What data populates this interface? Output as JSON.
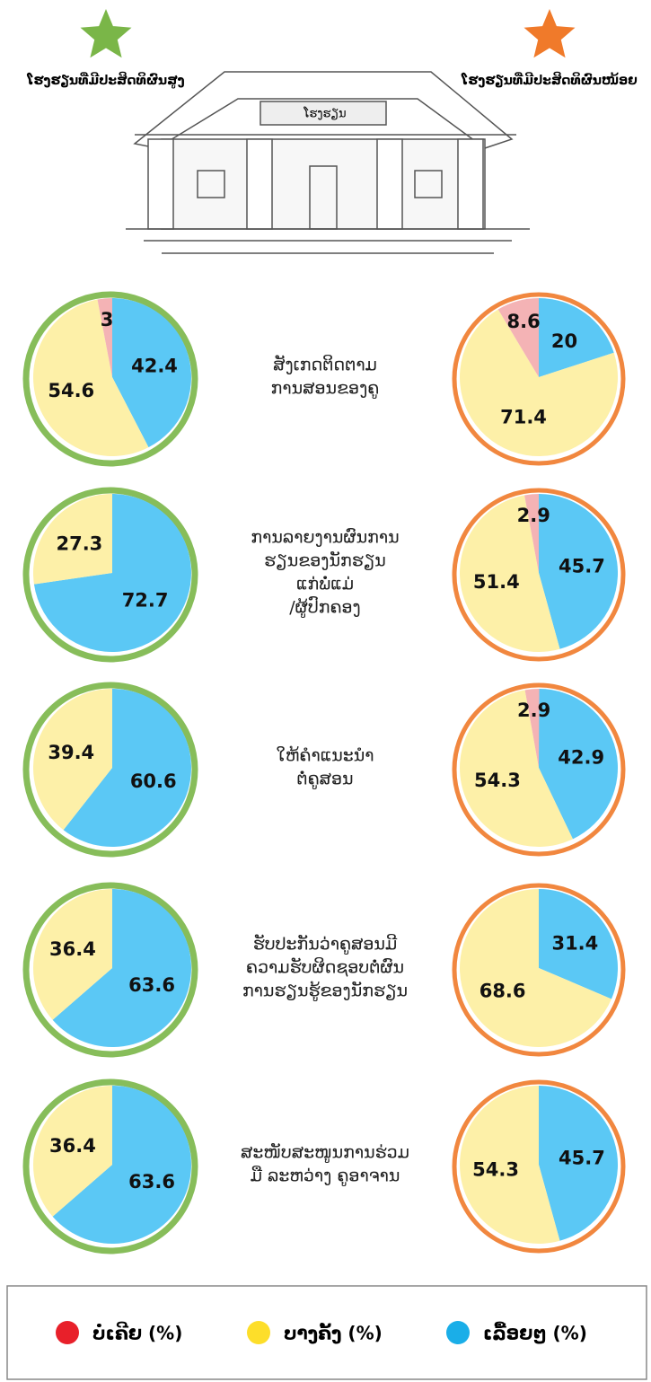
{
  "header": {
    "high": {
      "label": "ໂຮງຮຽນທີ່ມີປະສິດທິຜົນສູງ",
      "color": "#7ab648"
    },
    "low": {
      "label": "ໂຮງຮຽນທີ່ມີປະສິດທິຜົນໜ້ອຍ",
      "color": "#f07a2a"
    },
    "sign": "ໂຮງຮຽນ"
  },
  "legend": [
    {
      "name": "ບໍ່ເຄີຍ (%)",
      "color": "#e8202a",
      "slice_color": "#f4b3b5"
    },
    {
      "name": "ບາງຄັ້ງ (%)",
      "color": "#fdde2a",
      "slice_color": "#fdf0a8"
    },
    {
      "name": "ເລື້ອຍໆ (%)",
      "color": "#1aaee8",
      "slice_color": "#5bc8f5"
    }
  ],
  "rows": [
    [
      "ສັງເກດຕິດຕາມ",
      "ການສອນຂອງຄູ"
    ],
    [
      "ການລາຍງານຜົນການ",
      "ຮຽນຂອງນັກຮຽນ",
      "ແກ່ພໍ່ແມ່",
      "/ຜູ້ປົກຄອງ"
    ],
    [
      "ໃຫ້ຄຳແນະນຳ",
      "ຕໍ່ຄູສອນ"
    ],
    [
      "ຮັບປະກັນວ່າຄູສອນມີ",
      "ຄວາມຮັບຜິດຊອບຕໍ່ຜົນ",
      "ການຮຽນຮູ້ຂອງນັກຮຽນ"
    ],
    [
      "ສະໜັບສະໜູນການຮ່ວມ",
      "ມື ລະຫວ່າງ ຄູອາຈານ"
    ]
  ],
  "chart_data": [
    {
      "type": "pie",
      "values": [
        3,
        54.6,
        42.4
      ]
    },
    {
      "type": "pie",
      "values": [
        8.6,
        71.4,
        20
      ]
    },
    {
      "type": "pie",
      "values": [
        null,
        27.3,
        72.7
      ]
    },
    {
      "type": "pie",
      "values": [
        2.9,
        51.4,
        45.7
      ]
    },
    {
      "type": "pie",
      "values": [
        null,
        39.4,
        60.6
      ]
    },
    {
      "type": "pie",
      "values": [
        2.9,
        54.3,
        42.9
      ]
    },
    {
      "type": "pie",
      "values": [
        null,
        36.4,
        63.6
      ]
    },
    {
      "type": "pie",
      "values": [
        null,
        68.6,
        31.4
      ]
    },
    {
      "type": "pie",
      "values": [
        null,
        36.4,
        63.6
      ]
    },
    {
      "type": "pie",
      "values": [
        null,
        54.3,
        45.7
      ]
    }
  ]
}
